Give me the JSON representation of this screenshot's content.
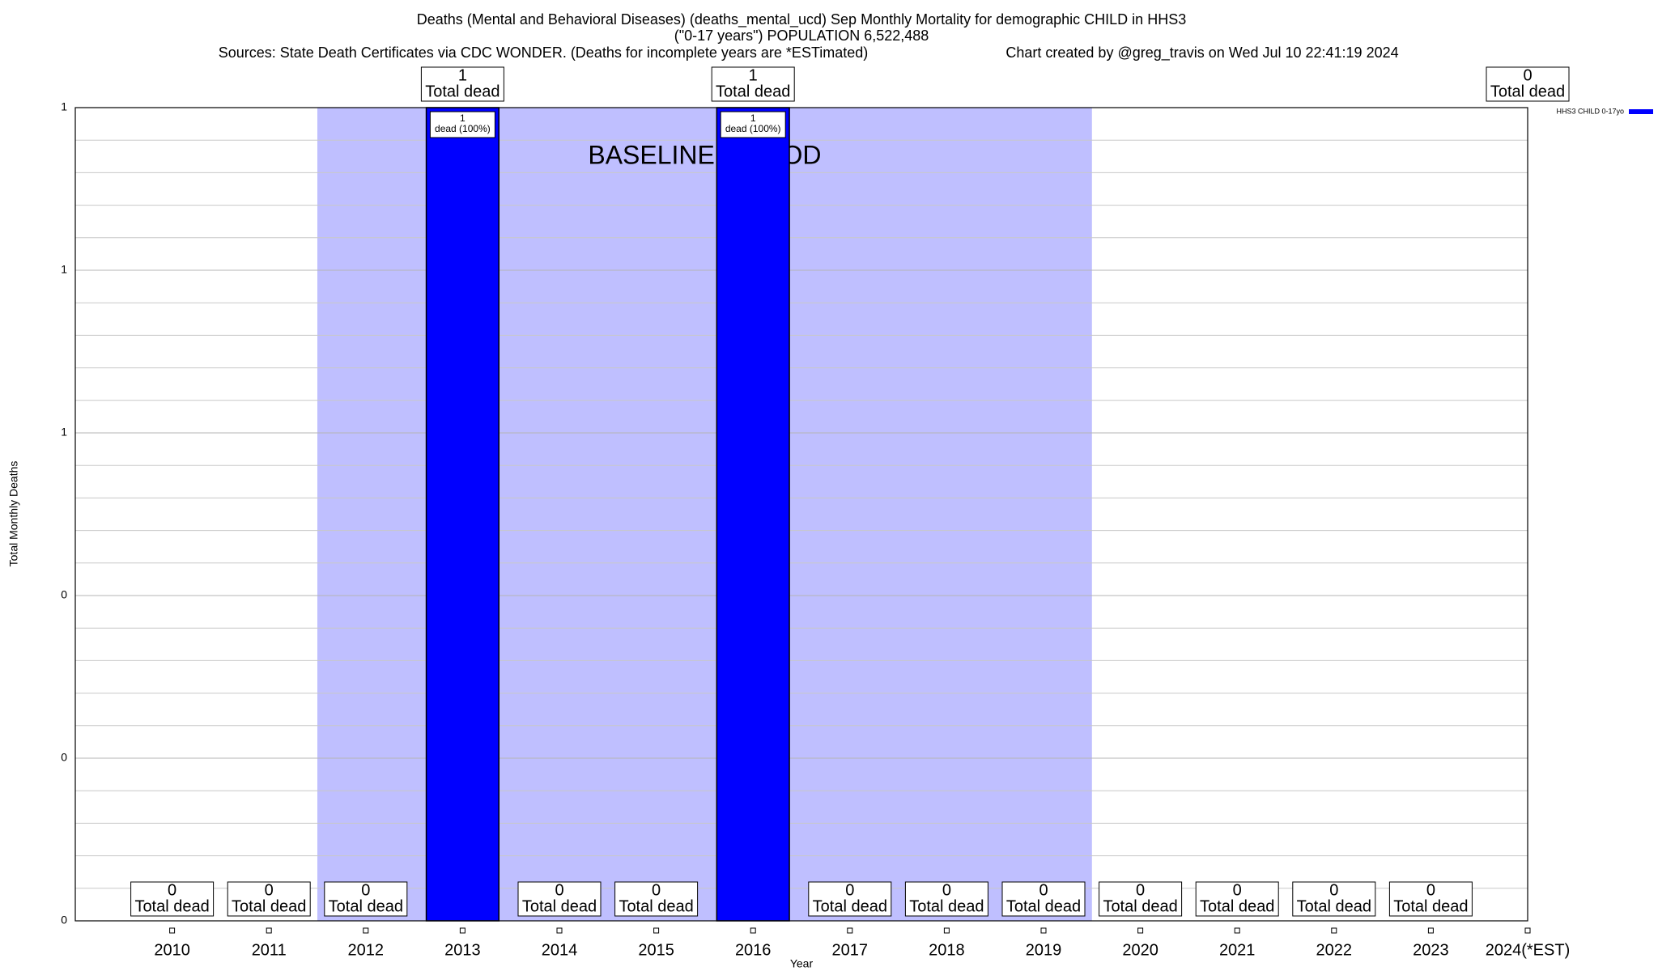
{
  "chart_data": {
    "type": "bar",
    "title": "Deaths (Mental and Behavioral Diseases) (deaths_mental_ucd) Sep Monthly Mortality for demographic CHILD in HHS3",
    "subtitle": "(\"0-17 years\") POPULATION 6,522,488",
    "source": "Sources: State Death Certificates via CDC WONDER. (Deaths for incomplete years are *ESTimated)",
    "credit": "Chart created by @greg_travis on Wed Jul 10 22:41:19 2024",
    "x_label": "Year",
    "y_label": "Total Monthly Deaths",
    "categories": [
      "2010",
      "2011",
      "2012",
      "2013",
      "2014",
      "2015",
      "2016",
      "2017",
      "2018",
      "2019",
      "2020",
      "2021",
      "2022",
      "2023",
      "2024(*EST)"
    ],
    "series": [
      {
        "name": "HHS3 CHILD 0-17yo",
        "color": "#0000ff",
        "values": [
          0,
          0,
          0,
          1,
          0,
          0,
          1,
          0,
          0,
          0,
          0,
          0,
          0,
          0,
          0
        ],
        "value_label_text": "Total dead",
        "inner_labels": [
          null,
          null,
          null,
          "dead (100%)",
          null,
          null,
          "dead (100%)",
          null,
          null,
          null,
          null,
          null,
          null,
          null,
          null
        ]
      }
    ],
    "ylim": [
      0,
      1
    ],
    "yticks": [
      0,
      {
        "value": 0.2,
        "label": "0"
      },
      {
        "value": 0.4,
        "label": "0"
      },
      {
        "value": 0.6,
        "label": "1"
      },
      {
        "value": 0.8,
        "label": "1"
      },
      1
    ],
    "minor_yticks": [
      0.04,
      0.08,
      0.12,
      0.16,
      0.24,
      0.28,
      0.32,
      0.36,
      0.44,
      0.48,
      0.52,
      0.56,
      0.64,
      0.68,
      0.72,
      0.76,
      0.84,
      0.88,
      0.92,
      0.96
    ],
    "grid": true,
    "shaded_region": {
      "label": "BASELINE PERIOD",
      "from": "2012",
      "to": "2019",
      "color": "#bfbfff"
    },
    "legend_position": "top-right"
  }
}
